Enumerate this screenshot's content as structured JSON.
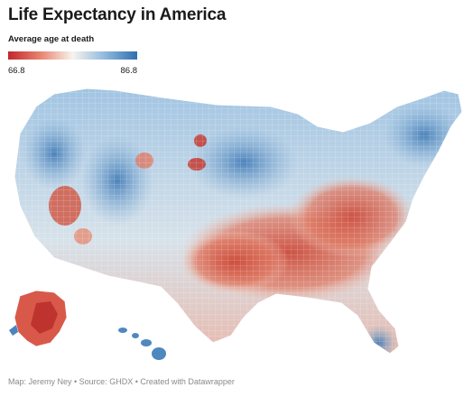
{
  "title": "Life Expectancy in America",
  "legend": {
    "title": "Average age at death",
    "min_label": "66.8",
    "max_label": "86.8",
    "scale_min": 66.8,
    "scale_max": 86.8,
    "colors": [
      "#c1272d",
      "#e8846f",
      "#f7f4ee",
      "#8fb9dd",
      "#2f6fb0"
    ]
  },
  "map": {
    "region_low_color": "#c84a3f",
    "region_high_color": "#3b78b6",
    "region_neutral_color": "#f3ece6"
  },
  "footer": {
    "byline": "Map: Jeremy Ney • Source: GHDX • Created with Datawrapper"
  }
}
